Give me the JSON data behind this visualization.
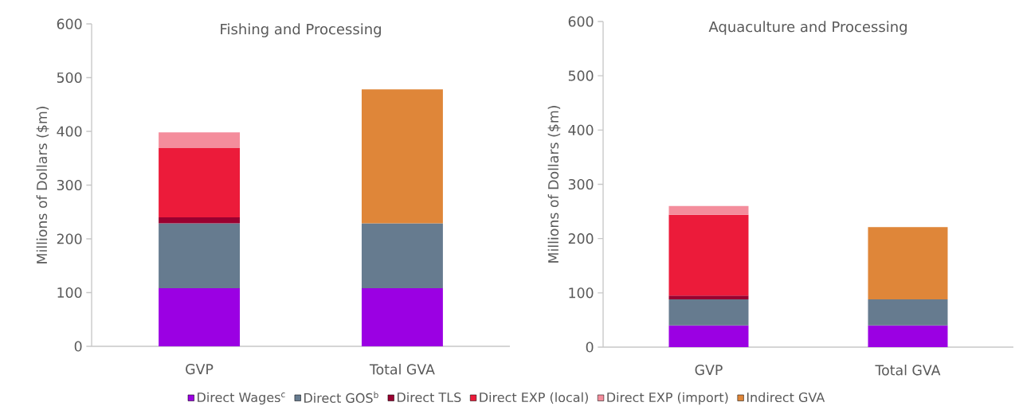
{
  "chart_data": [
    {
      "type": "bar",
      "title": "Fishing and Processing",
      "ylabel": "Millions of Dollars ($m)",
      "categories": [
        "GVP",
        "Total GVA"
      ],
      "stacked": true,
      "ylim": [
        0,
        600
      ],
      "yticks": [
        0,
        100,
        200,
        300,
        400,
        500,
        600
      ],
      "legend": "bottom",
      "series": [
        {
          "name": "Direct Wages$^{c}$",
          "color": "#9b00e3",
          "values": [
            108,
            108
          ]
        },
        {
          "name": "Direct GOS$^{b}$",
          "color": "#667b8f",
          "values": [
            121,
            121
          ]
        },
        {
          "name": "Direct TLS",
          "color": "#9a0030",
          "values": [
            11,
            null
          ]
        },
        {
          "name": "Direct EXP (local)",
          "color": "#ec1b3a",
          "values": [
            129,
            null
          ]
        },
        {
          "name": "Direct EXP (import)",
          "color": "#f48d9c",
          "values": [
            29,
            null
          ]
        },
        {
          "name": "Indirect GVA",
          "color": "#df8639",
          "values": [
            null,
            249
          ]
        }
      ]
    },
    {
      "type": "bar",
      "title": "Aquaculture and Processing",
      "ylabel": "Millions of Dollars ($m)",
      "categories": [
        "GVP",
        "Total GVA"
      ],
      "stacked": true,
      "ylim": [
        0,
        600
      ],
      "yticks": [
        0,
        100,
        200,
        300,
        400,
        500,
        600
      ],
      "series": [
        {
          "color": "#9b00e3",
          "values": [
            40,
            40
          ]
        },
        {
          "color": "#667b8f",
          "values": [
            48,
            48
          ]
        },
        {
          "color": "#9a0030",
          "values": [
            7,
            null
          ]
        },
        {
          "color": "#ec1b3a",
          "values": [
            149,
            null
          ]
        },
        {
          "color": "#f48d9c",
          "values": [
            16,
            null
          ]
        },
        {
          "color": "#df8639",
          "values": [
            null,
            133
          ]
        }
      ]
    }
  ]
}
